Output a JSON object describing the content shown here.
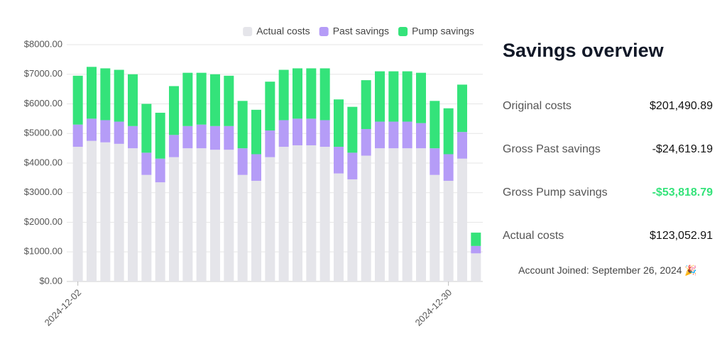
{
  "chart_data": {
    "type": "stacked_bar",
    "categories": [
      "2024-12-02",
      null,
      null,
      null,
      null,
      null,
      null,
      null,
      null,
      null,
      null,
      null,
      null,
      null,
      null,
      null,
      null,
      null,
      null,
      null,
      null,
      null,
      null,
      null,
      null,
      null,
      null,
      "2024-12-30",
      null,
      null
    ],
    "series": [
      {
        "name": "Actual costs",
        "color": "#e5e5ea",
        "values": [
          4550,
          4750,
          4700,
          4650,
          4500,
          3600,
          3350,
          4200,
          4500,
          4500,
          4450,
          4450,
          3600,
          3400,
          4200,
          4550,
          4600,
          4600,
          4550,
          3650,
          3450,
          4250,
          4500,
          4500,
          4500,
          4500,
          3600,
          3400,
          4150,
          950
        ]
      },
      {
        "name": "Past savings",
        "color": "#b59cf7",
        "values": [
          750,
          750,
          750,
          750,
          750,
          750,
          800,
          750,
          750,
          800,
          800,
          800,
          900,
          900,
          900,
          900,
          900,
          900,
          900,
          900,
          900,
          900,
          900,
          900,
          900,
          850,
          900,
          900,
          900,
          250
        ]
      },
      {
        "name": "Pump savings",
        "color": "#34e37a",
        "values": [
          1650,
          1750,
          1750,
          1750,
          1750,
          1650,
          1550,
          1650,
          1800,
          1750,
          1750,
          1700,
          1600,
          1500,
          1650,
          1700,
          1700,
          1700,
          1750,
          1600,
          1550,
          1650,
          1700,
          1700,
          1700,
          1700,
          1600,
          1550,
          1600,
          450
        ]
      }
    ],
    "ylim": [
      0,
      8000
    ],
    "yticks": [
      {
        "value": 0,
        "label": "$0.00"
      },
      {
        "value": 1000,
        "label": "$1000.00"
      },
      {
        "value": 2000,
        "label": "$2000.00"
      },
      {
        "value": 3000,
        "label": "$3000.00"
      },
      {
        "value": 4000,
        "label": "$4000.00"
      },
      {
        "value": 5000,
        "label": "$5000.00"
      },
      {
        "value": 6000,
        "label": "$6000.00"
      },
      {
        "value": 7000,
        "label": "$7000.00"
      },
      {
        "value": 8000,
        "label": "$8000.00"
      }
    ],
    "grid": true,
    "legend": "top-right"
  },
  "summary": {
    "title": "Savings overview",
    "rows": [
      {
        "label": "Original costs",
        "value": "$201,490.89"
      },
      {
        "label": "Gross Past savings",
        "value": "-$24,619.19"
      },
      {
        "label": "Gross Pump savings",
        "value": "-$53,818.79",
        "color": "#34e37a"
      },
      {
        "label": "Actual costs",
        "value": "$123,052.91"
      }
    ],
    "footer": "Account Joined: September 26, 2024 🎉"
  }
}
